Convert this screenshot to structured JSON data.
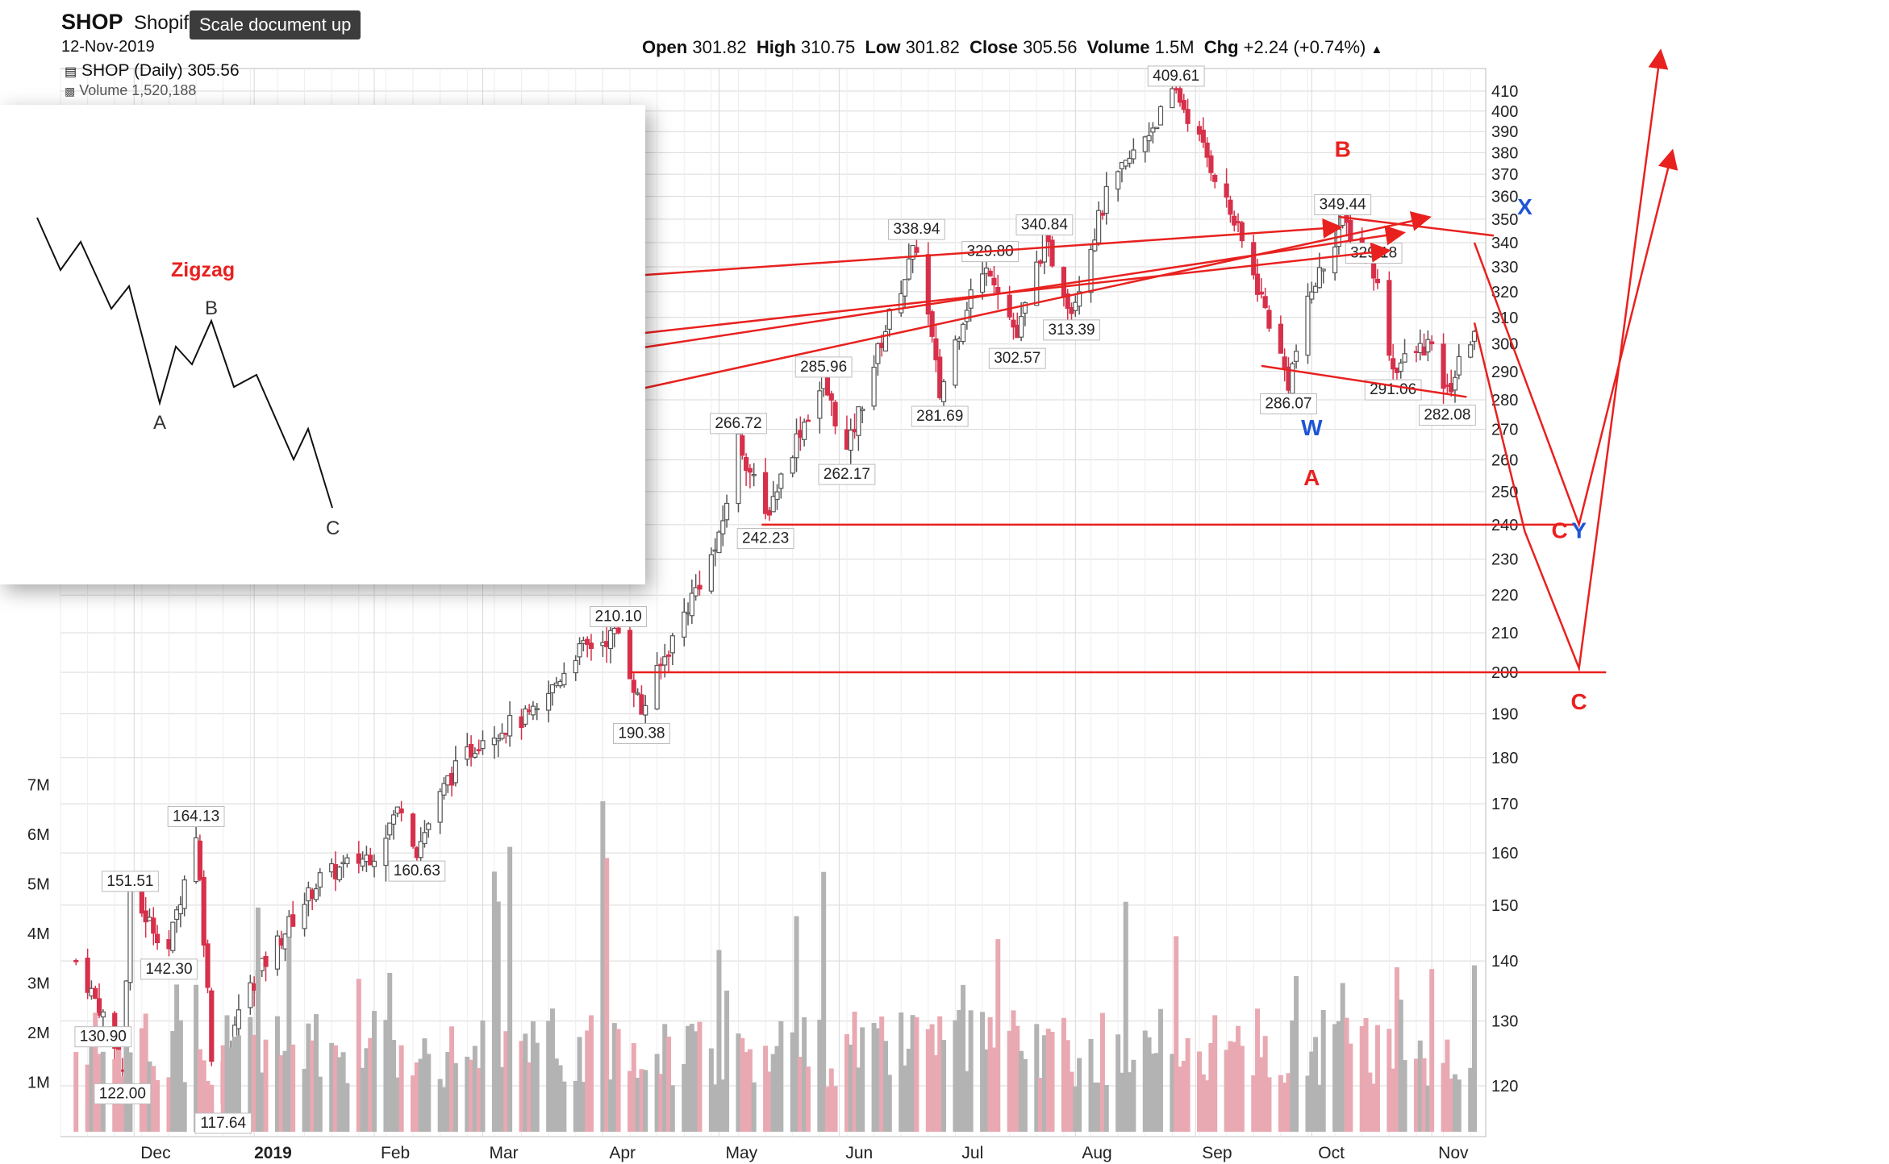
{
  "header": {
    "symbol": "SHOP",
    "company": "Shopif",
    "date": "12-Nov-2019",
    "legend_price": "SHOP (Daily) 305.56",
    "legend_volume": "Volume 1,520,188",
    "ohlc": [
      {
        "label": "Open",
        "value": "301.82"
      },
      {
        "label": "High",
        "value": "310.75"
      },
      {
        "label": "Low",
        "value": "301.82"
      },
      {
        "label": "Close",
        "value": "305.56"
      },
      {
        "label": "Volume",
        "value": "1.5M"
      },
      {
        "label": "Chg",
        "value": "+2.24 (+0.74%)"
      }
    ]
  },
  "tooltip": "Scale document up",
  "inset": {
    "title": "Zigzag",
    "labels": [
      "A",
      "B",
      "C"
    ]
  },
  "colors": {
    "up": "#555555",
    "down": "#d6304a",
    "volume_up": "#b3b3b3",
    "volume_down": "#e9a9b2",
    "annotation_red": "#e8211f",
    "annotation_blue": "#1d55d6",
    "grid": "#d9d9d9"
  },
  "chart_data": {
    "type": "candlestick",
    "ylabel": "",
    "y_scale": "log",
    "price_ticks": [
      120,
      130,
      140,
      150,
      160,
      170,
      180,
      190,
      200,
      210,
      220,
      230,
      240,
      250,
      260,
      270,
      280,
      290,
      300,
      310,
      320,
      330,
      340,
      350,
      360,
      370,
      380,
      390,
      400,
      410
    ],
    "volume_ticks": [
      "1M",
      "2M",
      "3M",
      "4M",
      "5M",
      "6M",
      "7M"
    ],
    "x_ticks": [
      "Dec",
      "2019",
      "Feb",
      "Mar",
      "Apr",
      "May",
      "Jun",
      "Jul",
      "Aug",
      "Sep",
      "Oct",
      "Nov"
    ],
    "price_path": [
      [
        "2018-11-16",
        140
      ],
      [
        "2018-11-23",
        130.9
      ],
      [
        "2018-11-28",
        122.0
      ],
      [
        "2018-11-30",
        151.51
      ],
      [
        "2018-12-07",
        145
      ],
      [
        "2018-12-10",
        142.3
      ],
      [
        "2018-12-17",
        164.13
      ],
      [
        "2018-12-21",
        125
      ],
      [
        "2018-12-24",
        117.64
      ],
      [
        "2018-12-28",
        132
      ],
      [
        "2019-01-04",
        140
      ],
      [
        "2019-01-18",
        155
      ],
      [
        "2019-02-01",
        160
      ],
      [
        "2019-02-08",
        170
      ],
      [
        "2019-02-12",
        160.63
      ],
      [
        "2019-02-20",
        175
      ],
      [
        "2019-03-01",
        185
      ],
      [
        "2019-03-15",
        190
      ],
      [
        "2019-03-25",
        205
      ],
      [
        "2019-04-01",
        208
      ],
      [
        "2019-04-05",
        210.1
      ],
      [
        "2019-04-11",
        190.38
      ],
      [
        "2019-04-22",
        215
      ],
      [
        "2019-05-01",
        235
      ],
      [
        "2019-05-06",
        266.72
      ],
      [
        "2019-05-13",
        242.23
      ],
      [
        "2019-05-22",
        270
      ],
      [
        "2019-05-28",
        285.96
      ],
      [
        "2019-06-03",
        262.17
      ],
      [
        "2019-06-14",
        310
      ],
      [
        "2019-06-21",
        338.94
      ],
      [
        "2019-06-27",
        281.69
      ],
      [
        "2019-07-05",
        320
      ],
      [
        "2019-07-10",
        329.8
      ],
      [
        "2019-07-17",
        302.57
      ],
      [
        "2019-07-24",
        340.84
      ],
      [
        "2019-07-31",
        313.39
      ],
      [
        "2019-08-09",
        360
      ],
      [
        "2019-08-27",
        409.61
      ],
      [
        "2019-09-06",
        370
      ],
      [
        "2019-09-13",
        340
      ],
      [
        "2019-09-25",
        286.07
      ],
      [
        "2019-10-01",
        320
      ],
      [
        "2019-10-09",
        349.44
      ],
      [
        "2019-10-17",
        329.18
      ],
      [
        "2019-10-22",
        291.06
      ],
      [
        "2019-10-31",
        300
      ],
      [
        "2019-11-05",
        282.08
      ],
      [
        "2019-11-12",
        305.56
      ]
    ],
    "price_labels": [
      {
        "date": "2018-11-23",
        "value": 130.9,
        "text": "130.90",
        "pos": "below"
      },
      {
        "date": "2018-11-28",
        "value": 122.0,
        "text": "122.00",
        "pos": "below"
      },
      {
        "date": "2018-11-30",
        "value": 151.51,
        "text": "151.51",
        "pos": "above"
      },
      {
        "date": "2018-12-10",
        "value": 142.3,
        "text": "142.30",
        "pos": "below"
      },
      {
        "date": "2018-12-17",
        "value": 164.13,
        "text": "164.13",
        "pos": "above"
      },
      {
        "date": "2018-12-24",
        "value": 117.64,
        "text": "117.64",
        "pos": "below"
      },
      {
        "date": "2019-02-12",
        "value": 160.63,
        "text": "160.63",
        "pos": "below"
      },
      {
        "date": "2019-04-05",
        "value": 210.1,
        "text": "210.10",
        "pos": "above"
      },
      {
        "date": "2019-04-11",
        "value": 190.38,
        "text": "190.38",
        "pos": "below"
      },
      {
        "date": "2019-05-06",
        "value": 266.72,
        "text": "266.72",
        "pos": "above"
      },
      {
        "date": "2019-05-13",
        "value": 242.23,
        "text": "242.23",
        "pos": "below"
      },
      {
        "date": "2019-05-28",
        "value": 285.96,
        "text": "285.96",
        "pos": "above"
      },
      {
        "date": "2019-06-03",
        "value": 262.17,
        "text": "262.17",
        "pos": "below"
      },
      {
        "date": "2019-06-21",
        "value": 338.94,
        "text": "338.94",
        "pos": "above"
      },
      {
        "date": "2019-06-27",
        "value": 281.69,
        "text": "281.69",
        "pos": "below"
      },
      {
        "date": "2019-07-10",
        "value": 329.8,
        "text": "329.80",
        "pos": "above"
      },
      {
        "date": "2019-07-17",
        "value": 302.57,
        "text": "302.57",
        "pos": "below"
      },
      {
        "date": "2019-07-24",
        "value": 340.84,
        "text": "340.84",
        "pos": "above"
      },
      {
        "date": "2019-07-31",
        "value": 313.39,
        "text": "313.39",
        "pos": "below"
      },
      {
        "date": "2019-08-27",
        "value": 409.61,
        "text": "409.61",
        "pos": "above"
      },
      {
        "date": "2019-09-25",
        "value": 286.07,
        "text": "286.07",
        "pos": "below"
      },
      {
        "date": "2019-10-09",
        "value": 349.44,
        "text": "349.44",
        "pos": "above"
      },
      {
        "date": "2019-10-17",
        "value": 329.18,
        "text": "329.18",
        "pos": "above"
      },
      {
        "date": "2019-10-22",
        "value": 291.06,
        "text": "291.06",
        "pos": "below"
      },
      {
        "date": "2019-11-05",
        "value": 282.08,
        "text": "282.08",
        "pos": "below"
      }
    ],
    "wave_labels": [
      {
        "text": "B",
        "date": "2019-10-09",
        "value": 378,
        "color": "red"
      },
      {
        "text": "X",
        "date": "2019-11-25",
        "value": 352,
        "color": "blue"
      },
      {
        "text": "W",
        "date": "2019-10-01",
        "value": 268,
        "color": "blue"
      },
      {
        "text": "A",
        "date": "2019-10-01",
        "value": 252,
        "color": "red"
      },
      {
        "text": "C",
        "date": "2019-12-04",
        "value": 236,
        "color": "red"
      },
      {
        "text": "Y",
        "date": "2019-12-09",
        "value": 236,
        "color": "blue"
      },
      {
        "text": "C",
        "date": "2019-12-09",
        "value": 191,
        "color": "red"
      }
    ],
    "projection": [
      [
        "2019-11-12",
        308
      ],
      [
        "2019-11-25",
        238
      ],
      [
        "2019-12-09",
        201
      ],
      [
        "2019-12-30",
        430
      ]
    ],
    "projection2": [
      [
        "2019-11-12",
        340
      ],
      [
        "2019-12-09",
        240
      ],
      [
        "2020-01-02",
        380
      ]
    ],
    "horizontals": [
      {
        "value": 240,
        "from": "2019-05-12",
        "to": "2019-12-08"
      },
      {
        "value": 200,
        "from": "2019-04-08",
        "to": "2019-12-16"
      }
    ],
    "trend_lines": [
      {
        "from": [
          "2019-10-08",
          351
        ],
        "to": [
          "2019-11-17",
          343
        ]
      },
      {
        "from": [
          "2019-09-18",
          292
        ],
        "to": [
          "2019-11-10",
          281
        ]
      }
    ],
    "volume_peaks_millions": [
      1.5,
      3.0,
      5.2,
      4.0,
      2.2,
      5.5,
      6.2,
      7.0,
      3.8,
      2.5,
      4.6,
      6.5,
      2.6,
      3.2,
      3.8,
      4.9,
      2.2,
      2.7,
      2.4,
      1.6
    ]
  }
}
